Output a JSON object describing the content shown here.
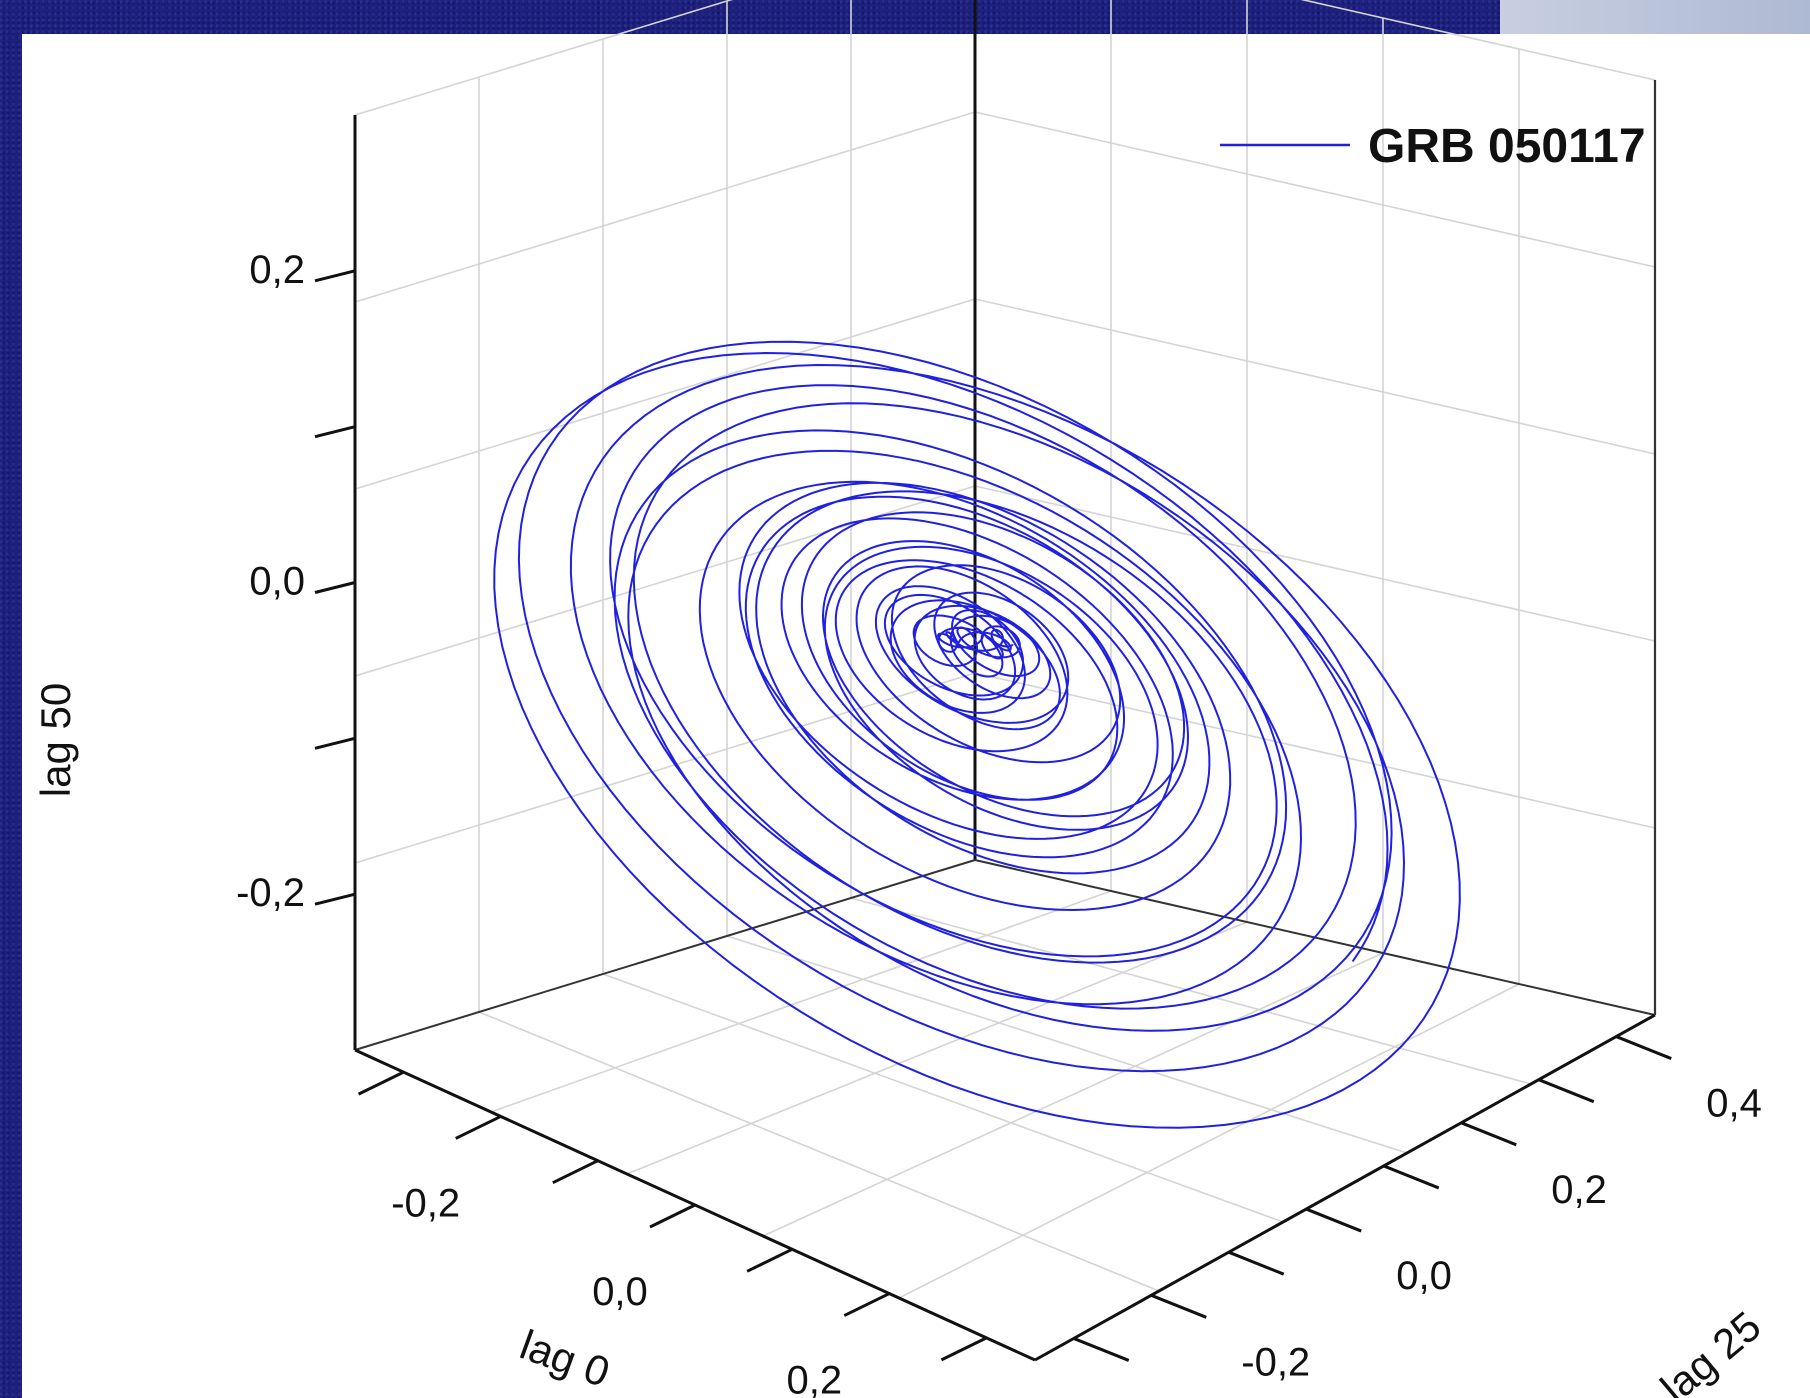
{
  "chart_data": {
    "type": "line",
    "projection": "3d",
    "title": "",
    "legend": {
      "placement": "top-right",
      "entries": [
        "GRB 050117"
      ]
    },
    "grid": true,
    "axes": {
      "x": {
        "label": "lag 0",
        "ticks": [
          "-0,2",
          "0,0",
          "0,2"
        ],
        "range": [
          -0.35,
          0.35
        ]
      },
      "y": {
        "label": "lag 25",
        "ticks": [
          "-0,2",
          "0,0",
          "0,2",
          "0,4"
        ],
        "range": [
          -0.35,
          0.45
        ]
      },
      "z": {
        "label": "lag 50",
        "ticks": [
          "-0,2",
          "0,0",
          "0,2"
        ],
        "range": [
          -0.3,
          0.3
        ]
      }
    },
    "series": [
      {
        "name": "GRB 050117",
        "color": "#2020e0",
        "trajectory": {
          "description_values": "spiral trajectory of lagged light-curve values; amplitudes in data units",
          "max_amplitude": 0.32,
          "min_amplitude": 0.005,
          "loops": 34
        }
      }
    ]
  },
  "colors": {
    "background": "#1e2180",
    "panel": "#ffffff",
    "series": "#2020e0",
    "grid": "#d4d4d4",
    "axis": "#111111"
  }
}
